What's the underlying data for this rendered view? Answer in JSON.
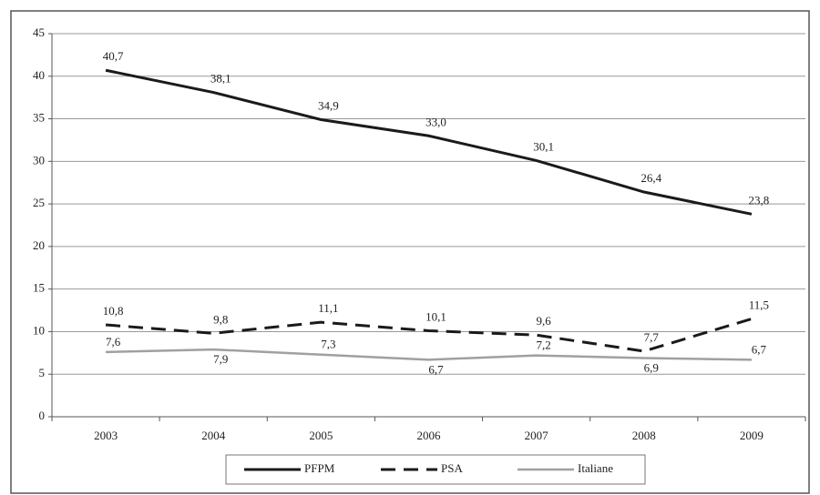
{
  "chart_data": {
    "type": "line",
    "categories": [
      "2003",
      "2004",
      "2005",
      "2006",
      "2007",
      "2008",
      "2009"
    ],
    "series": [
      {
        "name": "PFPM",
        "color": "#1a1a1a",
        "dash": false,
        "values": [
          40.7,
          38.1,
          34.9,
          33.0,
          30.1,
          26.4,
          23.8
        ],
        "value_labels": [
          "40,7",
          "38,1",
          "34,9",
          "33,0",
          "30,1",
          "26,4",
          "23,8"
        ]
      },
      {
        "name": "PSA",
        "color": "#1a1a1a",
        "dash": true,
        "values": [
          10.8,
          9.8,
          11.1,
          10.1,
          9.6,
          7.7,
          11.5
        ],
        "value_labels": [
          "10,8",
          "9,8",
          "11,1",
          "10,1",
          "9,6",
          "7,7",
          "11,5"
        ]
      },
      {
        "name": "Italiane",
        "color": "#a0a0a0",
        "dash": false,
        "values": [
          7.6,
          7.9,
          7.3,
          6.7,
          7.2,
          6.9,
          6.7
        ],
        "value_labels": [
          "7,6",
          "7,9",
          "7,3",
          "6,7",
          "7,2",
          "6,9",
          "6,7"
        ]
      }
    ],
    "ylim": [
      0,
      45
    ],
    "yticks": [
      0,
      5,
      10,
      15,
      20,
      25,
      30,
      35,
      40,
      45
    ],
    "grid": true
  }
}
